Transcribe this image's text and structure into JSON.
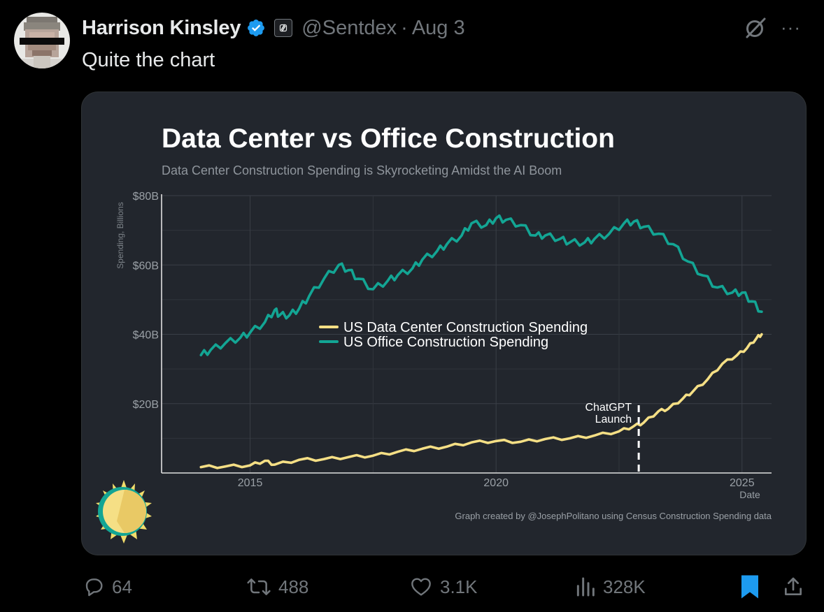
{
  "author": {
    "name": "Harrison Kinsley",
    "handle": "@Sentdex",
    "separator": "·",
    "date": "Aug 3"
  },
  "tweet": {
    "text": "Quite the chart"
  },
  "icons": {
    "verified": "verified-badge-icon",
    "affiliate": "affiliate-badge-icon",
    "grok": "grok-icon",
    "more": "more-icon",
    "reply": "reply-icon",
    "retweet": "retweet-icon",
    "like": "like-icon",
    "views": "views-icon",
    "bookmark": "bookmark-icon",
    "share": "share-icon"
  },
  "more_label": "···",
  "actions": {
    "replies": "64",
    "retweets": "488",
    "likes": "3.1K",
    "views": "328K"
  },
  "colors": {
    "background": "#000000",
    "card": "#22262d",
    "verified": "#1d9bf0",
    "bookmark": "#1d9bf0",
    "data_center": "#f5df85",
    "office": "#13a594",
    "muted": "#71767b"
  },
  "chart_data": {
    "type": "line",
    "title": "Data Center vs Office Construction",
    "subtitle": "Data Center Construction Spending is Skyrocketing Amidst the AI Boom",
    "xlabel": "Date",
    "ylabel": "Spending, Billions",
    "xlim": [
      2013.2,
      2025.6
    ],
    "ylim": [
      0,
      80
    ],
    "x_ticks": [
      2015,
      2020,
      2025
    ],
    "x_tick_labels": [
      "2015",
      "2020",
      "2025"
    ],
    "y_ticks": [
      20,
      40,
      60,
      80
    ],
    "y_tick_labels": [
      "$20B",
      "$40B",
      "$60B",
      "$80B"
    ],
    "grid": true,
    "legend_position": "center",
    "annotation": {
      "text_line1": "ChatGPT",
      "text_line2": "Launch",
      "x": 2022.9
    },
    "credit": "Graph created by @JosephPolitano using Census Construction Spending data",
    "series": [
      {
        "name": "US Data Center Construction Spending",
        "color": "#f5df85",
        "x": [
          2014.0,
          2014.5,
          2015.0,
          2015.3,
          2015.5,
          2016.0,
          2016.5,
          2017.0,
          2017.5,
          2018.0,
          2018.5,
          2019.0,
          2019.5,
          2020.0,
          2020.5,
          2021.0,
          2021.5,
          2022.0,
          2022.5,
          2022.8,
          2023.0,
          2023.3,
          2023.5,
          2023.8,
          2024.0,
          2024.3,
          2024.6,
          2024.9,
          2025.1,
          2025.3,
          2025.4
        ],
        "y": [
          1.7,
          1.9,
          2.2,
          3.5,
          2.4,
          3.8,
          4.0,
          4.6,
          5.0,
          6.1,
          7.0,
          7.6,
          8.8,
          9.2,
          9.0,
          9.8,
          10.0,
          10.8,
          12.0,
          13.5,
          14.5,
          17.8,
          18.5,
          21.5,
          23.5,
          27.0,
          31.5,
          34.0,
          36.0,
          39.0,
          40.0
        ]
      },
      {
        "name": "US Office Construction Spending",
        "color": "#13a594",
        "x": [
          2014.0,
          2014.2,
          2014.5,
          2014.8,
          2015.0,
          2015.3,
          2015.5,
          2015.6,
          2015.8,
          2016.0,
          2016.2,
          2016.5,
          2016.8,
          2017.0,
          2017.2,
          2017.5,
          2017.8,
          2018.0,
          2018.3,
          2018.5,
          2018.8,
          2019.0,
          2019.3,
          2019.5,
          2019.8,
          2020.0,
          2020.2,
          2020.5,
          2020.8,
          2021.0,
          2021.3,
          2021.5,
          2021.8,
          2022.0,
          2022.3,
          2022.6,
          2022.8,
          2023.0,
          2023.3,
          2023.6,
          2023.9,
          2024.2,
          2024.5,
          2024.8,
          2025.0,
          2025.2,
          2025.4
        ],
        "y": [
          34.0,
          35.5,
          37.5,
          39.0,
          40.5,
          43.5,
          47.0,
          45.5,
          45.5,
          47.5,
          51.0,
          56.0,
          60.0,
          58.5,
          56.0,
          53.0,
          55.5,
          57.0,
          59.0,
          61.5,
          64.0,
          66.0,
          68.5,
          72.0,
          71.5,
          73.5,
          73.0,
          71.5,
          68.5,
          68.5,
          67.5,
          66.5,
          66.5,
          67.5,
          69.0,
          72.0,
          72.5,
          71.0,
          69.0,
          66.0,
          61.0,
          57.0,
          53.5,
          52.0,
          52.0,
          49.5,
          46.5
        ]
      }
    ]
  }
}
